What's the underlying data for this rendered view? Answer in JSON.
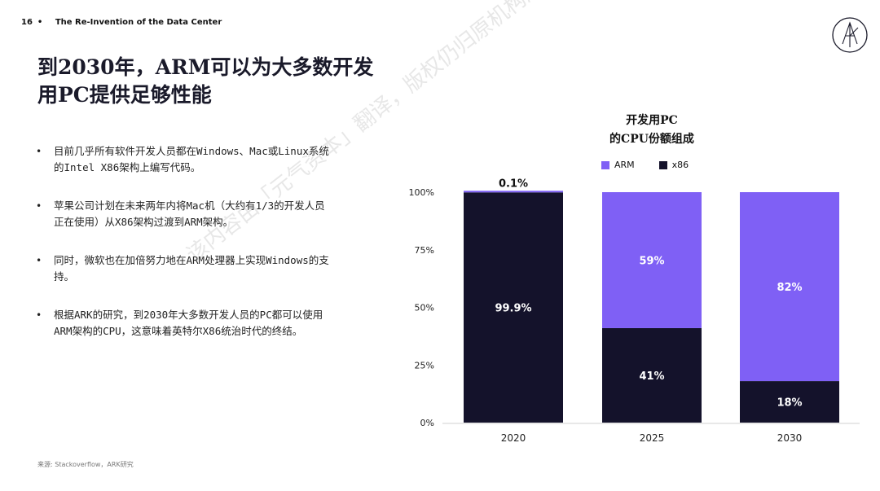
{
  "header": {
    "page_number": "16",
    "title": "The Re-Invention of the Data Center"
  },
  "slide_title": "到2030年，ARM可以为大多数开发用PC提供足够性能",
  "bullets": [
    "目前几乎所有软件开发人员都在Windows、Mac或Linux系统的Intel X86架构上编写代码。",
    "苹果公司计划在未来两年内将Mac机（大约有1/3的开发人员正在使用）从X86架构过渡到ARM架构。",
    "同时，微软也在加倍努力地在ARM处理器上实现Windows的支持。",
    "根据ARK的研究，到2030年大多数开发人员的PC都可以使用ARM架构的CPU，这意味着英特尔X86统治时代的终结。"
  ],
  "source": "来源: Stackoverflow，ARK研究",
  "watermark": "该内容由「元气资本」翻译，版权仍归原机构所有",
  "colors": {
    "arm": "#7f60f5",
    "x86": "#14122b",
    "axis": "#555555"
  },
  "chart_data": {
    "type": "bar",
    "stacked": true,
    "title_line1": "开发用PC",
    "title_line2": "的CPU份额组成",
    "categories": [
      "2020",
      "2025",
      "2030"
    ],
    "series": [
      {
        "name": "x86",
        "values": [
          99.9,
          41,
          18
        ],
        "labels": [
          "99.9%",
          "41%",
          "18%"
        ]
      },
      {
        "name": "ARM",
        "values": [
          0.1,
          59,
          82
        ],
        "labels": [
          "0.1%",
          "59%",
          "82%"
        ]
      }
    ],
    "y_ticks": [
      "0%",
      "25%",
      "50%",
      "75%",
      "100%"
    ],
    "ylim": [
      0,
      100
    ],
    "legend_position": "top",
    "grid": false
  }
}
